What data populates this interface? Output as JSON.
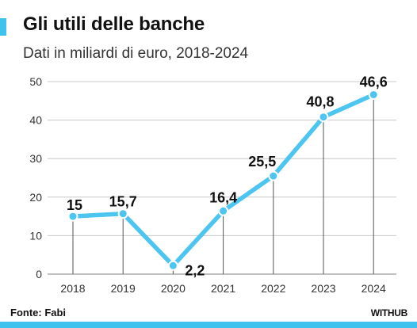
{
  "header": {
    "title": "Gli utili delle banche",
    "subtitle": "Dati in miliardi di euro, 2018-2024"
  },
  "footer": {
    "source": "Fonte: Fabi",
    "brand": "WITHUB"
  },
  "colors": {
    "accent": "#3FC3EE",
    "line": "#4CC5F0",
    "text": "#111111",
    "grid": "#c8c8c8",
    "drop_line": "#555555"
  },
  "chart_data": {
    "type": "line",
    "title": "Gli utili delle banche",
    "subtitle": "Dati in miliardi di euro, 2018-2024",
    "xlabel": "",
    "ylabel": "",
    "x": [
      "2018",
      "2019",
      "2020",
      "2021",
      "2022",
      "2023",
      "2024"
    ],
    "series": [
      {
        "values": [
          15,
          15.7,
          2.2,
          16.4,
          25.5,
          40.8,
          46.6
        ],
        "labels": [
          "15",
          "15,7",
          "2,2",
          "16,4",
          "25,5",
          "40,8",
          "46,6"
        ]
      }
    ],
    "ylim": [
      0,
      50
    ],
    "yticks": [
      0,
      10,
      20,
      30,
      40,
      50
    ],
    "grid": true,
    "legend": "none"
  }
}
